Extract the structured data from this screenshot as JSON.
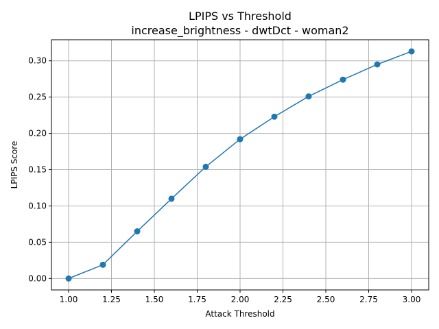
{
  "chart_data": {
    "type": "line",
    "title": "LPIPS vs Threshold",
    "subtitle": "increase_brightness - dwtDct - woman2",
    "xlabel": "Attack Threshold",
    "ylabel": "LPIPS Score",
    "xlim": [
      0.9,
      3.1
    ],
    "ylim": [
      -0.0157,
      0.329
    ],
    "xticks": [
      1.0,
      1.25,
      1.5,
      1.75,
      2.0,
      2.25,
      2.5,
      2.75,
      3.0
    ],
    "xtick_labels": [
      "1.00",
      "1.25",
      "1.50",
      "1.75",
      "2.00",
      "2.25",
      "2.50",
      "2.75",
      "3.00"
    ],
    "yticks": [
      0.0,
      0.05,
      0.1,
      0.15,
      0.2,
      0.25,
      0.3
    ],
    "ytick_labels": [
      "0.00",
      "0.05",
      "0.10",
      "0.15",
      "0.20",
      "0.25",
      "0.30"
    ],
    "grid": true,
    "series_color": "#1f77b4",
    "x": [
      1.0,
      1.2,
      1.4,
      1.6,
      1.8,
      2.0,
      2.2,
      2.4,
      2.6,
      2.8,
      3.0
    ],
    "values": [
      0.0,
      0.019,
      0.065,
      0.11,
      0.154,
      0.192,
      0.223,
      0.251,
      0.274,
      0.295,
      0.313
    ]
  }
}
